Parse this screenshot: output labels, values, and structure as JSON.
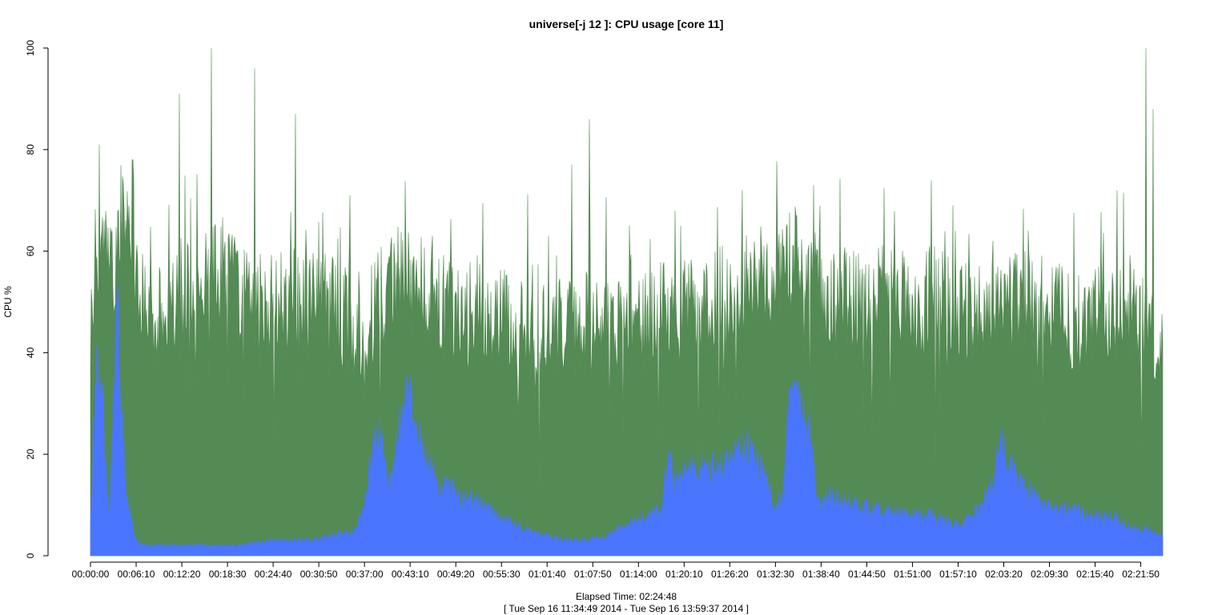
{
  "chart_data": {
    "type": "area",
    "title": "universe[-j 12  ]: CPU usage [core 11]",
    "ylabel": "CPU %",
    "xlabel": "Elapsed Time: 02:24:48",
    "xlabel_sub": "[ Tue Sep 16 11:34:49 2014 - Tue Sep 16 13:59:37 2014 ]",
    "ylim": [
      0,
      100
    ],
    "xlim_seconds": [
      0,
      8688
    ],
    "y_ticks": [
      0,
      20,
      40,
      60,
      80,
      100
    ],
    "x_ticks": [
      "00:00:00",
      "00:06:10",
      "00:12:20",
      "00:18:30",
      "00:24:40",
      "00:30:50",
      "00:37:00",
      "00:43:10",
      "00:49:20",
      "00:55:30",
      "01:01:40",
      "01:07:50",
      "01:14:00",
      "01:20:10",
      "01:26:20",
      "01:32:30",
      "01:38:40",
      "01:44:50",
      "01:51:00",
      "01:57:10",
      "02:03:20",
      "02:09:30",
      "02:15:40",
      "02:21:50"
    ],
    "grid": false,
    "legend": "none",
    "series": [
      {
        "color": "#548a54",
        "stacked_on": "blue",
        "x_time": [
          "00:00:00",
          "00:00:20",
          "00:01:00",
          "00:02:00",
          "00:03:00",
          "00:04:00",
          "00:05:00",
          "00:06:00",
          "00:08:00",
          "00:10:00",
          "00:12:00",
          "00:15:00",
          "00:18:00",
          "00:21:00",
          "00:24:00",
          "00:27:00",
          "00:30:00",
          "00:33:00",
          "00:36:00",
          "00:37:30",
          "00:39:00",
          "00:42:00",
          "00:45:00",
          "00:48:00",
          "00:51:00",
          "00:54:00",
          "00:57:00",
          "01:00:00",
          "01:03:00",
          "01:06:00",
          "01:09:00",
          "01:12:00",
          "01:15:00",
          "01:18:00",
          "01:21:00",
          "01:24:00",
          "01:27:00",
          "01:30:00",
          "01:33:00",
          "01:36:00",
          "01:39:00",
          "01:42:00",
          "01:45:00",
          "01:48:00",
          "01:51:00",
          "01:54:00",
          "01:57:00",
          "02:00:00",
          "02:03:00",
          "02:06:00",
          "02:09:00",
          "02:12:00",
          "02:15:00",
          "02:18:00",
          "02:21:00",
          "02:23:00",
          "02:24:48"
        ],
        "values": [
          38,
          55,
          62,
          60,
          55,
          65,
          62,
          58,
          45,
          48,
          50,
          52,
          56,
          50,
          48,
          50,
          50,
          48,
          45,
          46,
          50,
          56,
          52,
          48,
          47,
          46,
          46,
          45,
          44,
          46,
          47,
          47,
          46,
          48,
          48,
          50,
          53,
          55,
          58,
          58,
          52,
          50,
          50,
          51,
          50,
          50,
          48,
          48,
          50,
          50,
          48,
          47,
          47,
          46,
          46,
          45,
          40
        ],
        "peaks": [
          [
            "00:01:10",
            81
          ],
          [
            "00:05:40",
            78
          ],
          [
            "00:12:00",
            91
          ],
          [
            "00:16:20",
            100
          ],
          [
            "00:22:10",
            96
          ],
          [
            "00:27:40",
            87
          ],
          [
            "00:35:00",
            71
          ],
          [
            "00:40:20",
            59
          ],
          [
            "00:46:10",
            63
          ],
          [
            "01:05:00",
            77
          ],
          [
            "01:07:20",
            86
          ],
          [
            "01:19:40",
            65
          ],
          [
            "01:35:20",
            67
          ],
          [
            "01:37:40",
            73
          ],
          [
            "01:56:30",
            69
          ],
          [
            "02:01:50",
            62
          ],
          [
            "02:18:40",
            72
          ],
          [
            "02:22:30",
            100
          ],
          [
            "02:23:30",
            88
          ]
        ]
      },
      {
        "color": "#4a76ff",
        "x_time": [
          "00:00:00",
          "00:00:20",
          "00:01:00",
          "00:01:40",
          "00:02:30",
          "00:03:10",
          "00:03:40",
          "00:04:30",
          "00:05:00",
          "00:05:40",
          "00:06:10",
          "00:07:00",
          "00:08:00",
          "00:10:00",
          "00:15:00",
          "00:20:00",
          "00:25:00",
          "00:30:00",
          "00:33:00",
          "00:36:00",
          "00:37:00",
          "00:38:00",
          "00:39:00",
          "00:40:00",
          "00:41:00",
          "00:42:00",
          "00:43:00",
          "00:45:00",
          "00:47:00",
          "00:50:00",
          "00:53:00",
          "00:56:00",
          "00:59:00",
          "01:01:00",
          "01:04:00",
          "01:07:00",
          "01:10:00",
          "01:14:00",
          "01:17:00",
          "01:18:10",
          "01:19:00",
          "01:20:00",
          "01:23:00",
          "01:26:00",
          "01:28:00",
          "01:30:00",
          "01:32:30",
          "01:33:30",
          "01:34:30",
          "01:35:30",
          "01:37:00",
          "01:38:00",
          "01:39:00",
          "01:40:00",
          "01:43:00",
          "01:46:00",
          "01:50:00",
          "01:54:00",
          "01:57:00",
          "02:00:00",
          "02:02:00",
          "02:03:00",
          "02:04:00",
          "02:06:00",
          "02:09:00",
          "02:12:00",
          "02:15:00",
          "02:18:00",
          "02:21:00",
          "02:23:00",
          "02:24:48"
        ],
        "values": [
          6,
          20,
          42,
          30,
          6,
          30,
          50,
          20,
          10,
          6,
          3,
          2,
          2,
          2,
          2,
          2,
          3,
          3,
          4,
          5,
          10,
          20,
          25,
          15,
          18,
          28,
          32,
          20,
          14,
          12,
          10,
          7,
          5,
          4,
          3,
          3,
          4,
          7,
          9,
          20,
          14,
          17,
          17,
          18,
          22,
          19,
          10,
          12,
          35,
          30,
          27,
          12,
          10,
          12,
          10,
          9,
          8,
          8,
          6,
          9,
          14,
          24,
          18,
          14,
          10,
          9,
          8,
          8,
          5,
          5,
          4
        ]
      }
    ]
  }
}
